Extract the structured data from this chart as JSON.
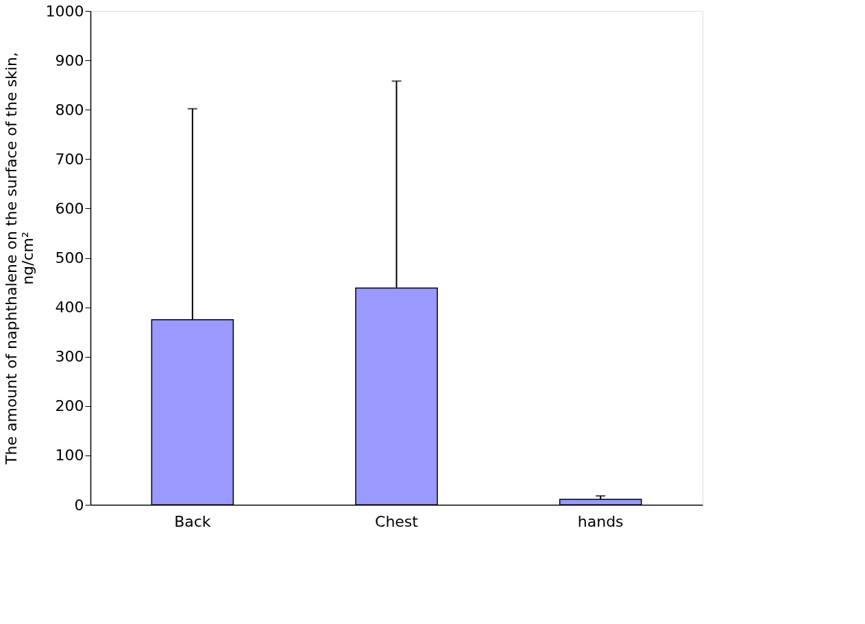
{
  "chart_data": {
    "type": "bar",
    "ylabel": "The amount of naphthalene on the surface of the skin, ng/cm²",
    "categories": [
      "Back",
      "Chest",
      "hands"
    ],
    "values": [
      375,
      439,
      11
    ],
    "errors": [
      [
        375,
        802
      ],
      [
        439,
        858
      ],
      [
        11,
        18
      ]
    ],
    "color": "#9999ff",
    "ylim": [
      0,
      1000
    ],
    "yticks": [
      0,
      100,
      200,
      300,
      400,
      500,
      600,
      700,
      800,
      900,
      1000
    ],
    "grid": false
  }
}
